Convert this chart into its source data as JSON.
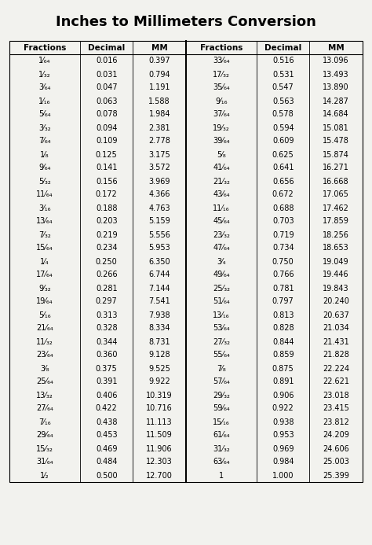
{
  "title": "Inches to Millimeters Conversion",
  "headers": [
    "Fractions",
    "Decimal",
    "MM",
    "Fractions",
    "Decimal",
    "MM"
  ],
  "rows": [
    [
      "1⁄₆₄",
      "0.016",
      "0.397",
      "33⁄₆₄",
      "0.516",
      "13.096"
    ],
    [
      "1⁄₃₂",
      "0.031",
      "0.794",
      "17⁄₃₂",
      "0.531",
      "13.493"
    ],
    [
      "3⁄₆₄",
      "0.047",
      "1.191",
      "35⁄₆₄",
      "0.547",
      "13.890"
    ],
    [
      "1⁄₁₆",
      "0.063",
      "1.588",
      "9⁄₁₆",
      "0.563",
      "14.287"
    ],
    [
      "5⁄₆₄",
      "0.078",
      "1.984",
      "37⁄₆₄",
      "0.578",
      "14.684"
    ],
    [
      "3⁄₃₂",
      "0.094",
      "2.381",
      "19⁄₃₂",
      "0.594",
      "15.081"
    ],
    [
      "7⁄₆₄",
      "0.109",
      "2.778",
      "39⁄₆₄",
      "0.609",
      "15.478"
    ],
    [
      "1⁄₈",
      "0.125",
      "3.175",
      "5⁄₈",
      "0.625",
      "15.874"
    ],
    [
      "9⁄₆₄",
      "0.141",
      "3.572",
      "41⁄₆₄",
      "0.641",
      "16.271"
    ],
    [
      "5⁄₃₂",
      "0.156",
      "3.969",
      "21⁄₃₂",
      "0.656",
      "16.668"
    ],
    [
      "11⁄₆₄",
      "0.172",
      "4.366",
      "43⁄₆₄",
      "0.672",
      "17.065"
    ],
    [
      "3⁄₁₆",
      "0.188",
      "4.763",
      "11⁄₁₆",
      "0.688",
      "17.462"
    ],
    [
      "13⁄₆₄",
      "0.203",
      "5.159",
      "45⁄₆₄",
      "0.703",
      "17.859"
    ],
    [
      "7⁄₃₂",
      "0.219",
      "5.556",
      "23⁄₃₂",
      "0.719",
      "18.256"
    ],
    [
      "15⁄₆₄",
      "0.234",
      "5.953",
      "47⁄₆₄",
      "0.734",
      "18.653"
    ],
    [
      "1⁄₄",
      "0.250",
      "6.350",
      "3⁄₄",
      "0.750",
      "19.049"
    ],
    [
      "17⁄₆₄",
      "0.266",
      "6.744",
      "49⁄₆₄",
      "0.766",
      "19.446"
    ],
    [
      "9⁄₃₂",
      "0.281",
      "7.144",
      "25⁄₃₂",
      "0.781",
      "19.843"
    ],
    [
      "19⁄₆₄",
      "0.297",
      "7.541",
      "51⁄₆₄",
      "0.797",
      "20.240"
    ],
    [
      "5⁄₁₆",
      "0.313",
      "7.938",
      "13⁄₁₆",
      "0.813",
      "20.637"
    ],
    [
      "21⁄₆₄",
      "0.328",
      "8.334",
      "53⁄₆₄",
      "0.828",
      "21.034"
    ],
    [
      "11⁄₃₂",
      "0.344",
      "8.731",
      "27⁄₃₂",
      "0.844",
      "21.431"
    ],
    [
      "23⁄₆₄",
      "0.360",
      "9.128",
      "55⁄₆₄",
      "0.859",
      "21.828"
    ],
    [
      "3⁄₈",
      "0.375",
      "9.525",
      "7⁄₈",
      "0.875",
      "22.224"
    ],
    [
      "25⁄₆₄",
      "0.391",
      "9.922",
      "57⁄₆₄",
      "0.891",
      "22.621"
    ],
    [
      "13⁄₃₂",
      "0.406",
      "10.319",
      "29⁄₃₂",
      "0.906",
      "23.018"
    ],
    [
      "27⁄₆₄",
      "0.422",
      "10.716",
      "59⁄₆₄",
      "0.922",
      "23.415"
    ],
    [
      "7⁄₁₆",
      "0.438",
      "11.113",
      "15⁄₁₆",
      "0.938",
      "23.812"
    ],
    [
      "29⁄₆₄",
      "0.453",
      "11.509",
      "61⁄₆₄",
      "0.953",
      "24.209"
    ],
    [
      "15⁄₃₂",
      "0.469",
      "11.906",
      "31⁄₃₂",
      "0.969",
      "24.606"
    ],
    [
      "31⁄₆₄",
      "0.484",
      "12.303",
      "63⁄₆₄",
      "0.984",
      "25.003"
    ],
    [
      "1⁄₂",
      "0.500",
      "12.700",
      "1",
      "1.000",
      "25.399"
    ]
  ],
  "bg_color": "#f2f2ee",
  "title_fontsize": 13,
  "header_fontsize": 7.5,
  "data_fontsize": 7.0
}
